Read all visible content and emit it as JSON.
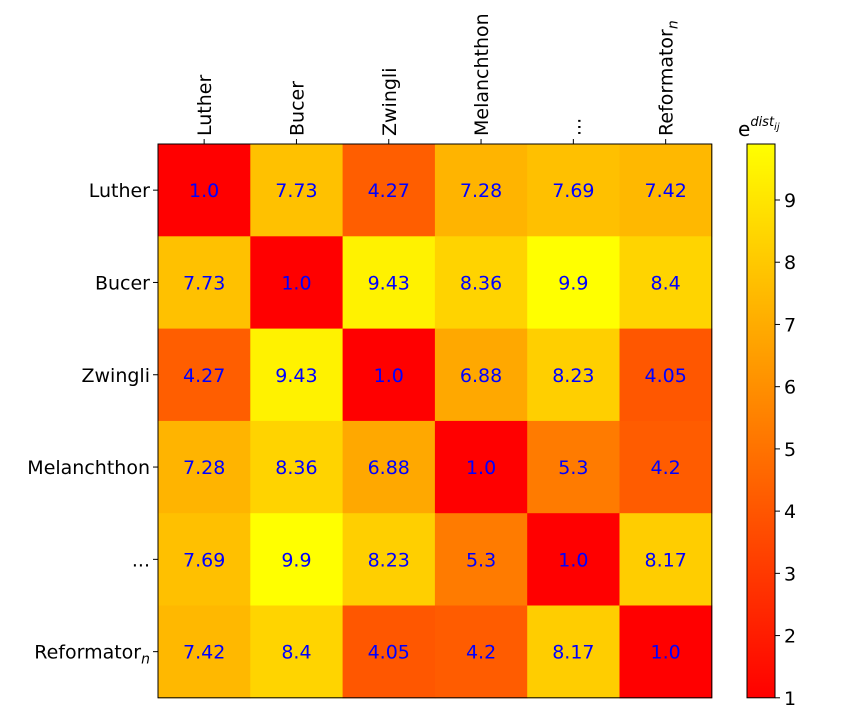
{
  "chart_data": {
    "type": "heatmap",
    "x_labels": [
      "Luther",
      "Bucer",
      "Zwingli",
      "Melanchthon",
      "...",
      "Reformator_n"
    ],
    "y_labels": [
      "Luther",
      "Bucer",
      "Zwingli",
      "Melanchthon",
      "...",
      "Reformator_n"
    ],
    "values": [
      [
        1.0,
        7.73,
        4.27,
        7.28,
        7.69,
        7.42
      ],
      [
        7.73,
        1.0,
        9.43,
        8.36,
        9.9,
        8.4
      ],
      [
        4.27,
        9.43,
        1.0,
        6.88,
        8.23,
        4.05
      ],
      [
        7.28,
        8.36,
        6.88,
        1.0,
        5.3,
        4.2
      ],
      [
        7.69,
        9.9,
        8.23,
        5.3,
        1.0,
        8.17
      ],
      [
        7.42,
        8.4,
        4.05,
        4.2,
        8.17,
        1.0
      ]
    ],
    "cell_labels": [
      [
        "1.0",
        "7.73",
        "4.27",
        "7.28",
        "7.69",
        "7.42"
      ],
      [
        "7.73",
        "1.0",
        "9.43",
        "8.36",
        "9.9",
        "8.4"
      ],
      [
        "4.27",
        "9.43",
        "1.0",
        "6.88",
        "8.23",
        "4.05"
      ],
      [
        "7.28",
        "8.36",
        "6.88",
        "1.0",
        "5.3",
        "4.2"
      ],
      [
        "7.69",
        "9.9",
        "8.23",
        "5.3",
        "1.0",
        "8.17"
      ],
      [
        "7.42",
        "8.4",
        "4.05",
        "4.2",
        "8.17",
        "1.0"
      ]
    ],
    "colorbar": {
      "label_base": "e",
      "label_sup": "dist",
      "label_sub": "ij",
      "ticks": [
        1,
        2,
        3,
        4,
        5,
        6,
        7,
        8,
        9
      ],
      "range": [
        1,
        9.9
      ],
      "colormap": "autumn"
    },
    "x_axis_position": "top",
    "grid": false,
    "annotation_color": "#0000ff"
  }
}
